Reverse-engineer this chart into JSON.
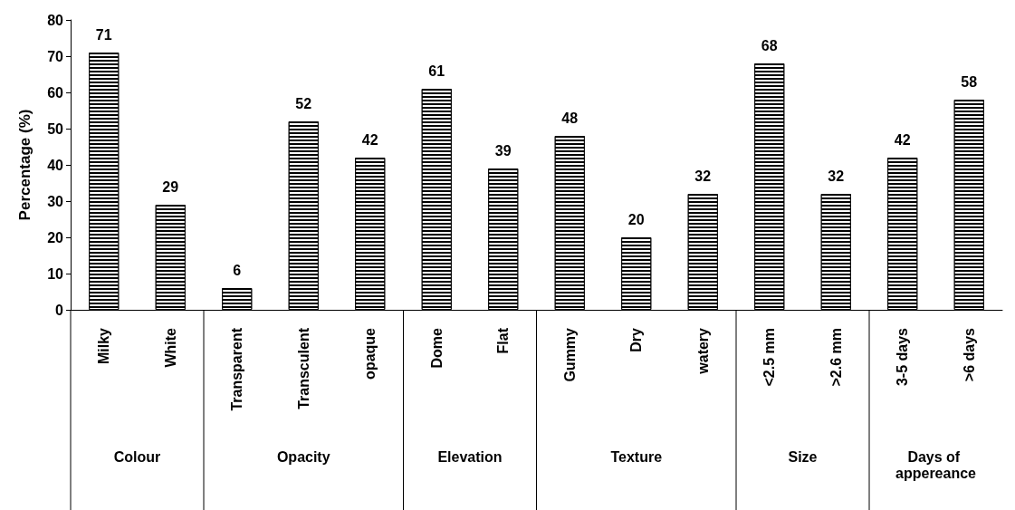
{
  "chart_data": {
    "type": "bar",
    "ylabel": "Percentage (%)",
    "categories": [
      "Milky",
      "White",
      "Transparent",
      "Transculent",
      "opaque",
      "Dome",
      "Flat",
      "Gummy",
      "Dry",
      "watery",
      "<2.5 mm",
      ">2.6 mm",
      "3-5 days",
      ">6 days"
    ],
    "values": [
      71,
      29,
      6,
      52,
      42,
      61,
      39,
      48,
      20,
      32,
      68,
      32,
      42,
      58
    ],
    "color": "#000000",
    "data_labels": true,
    "grid": false,
    "ylim": [
      0,
      80
    ],
    "yticks": [
      0,
      10,
      20,
      30,
      40,
      50,
      60,
      70,
      80
    ],
    "annotations": [
      "Colour",
      "Opacity",
      "Elevation",
      "Texture",
      "Size",
      "Days of appereance"
    ]
  }
}
